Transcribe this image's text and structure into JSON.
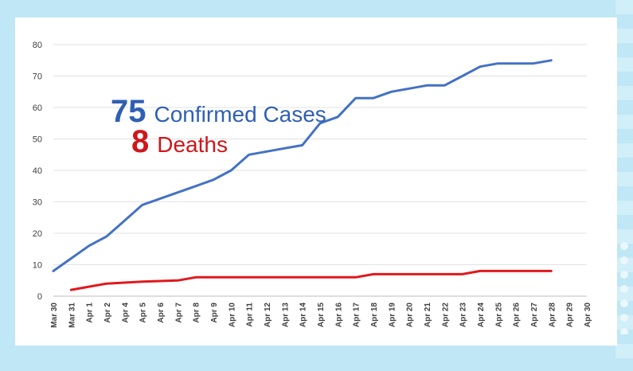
{
  "annotation": {
    "confirmed_number": "75",
    "confirmed_label": "Confirmed Cases",
    "confirmed_color": "#2f5fb3",
    "deaths_number": "8",
    "deaths_label": "Deaths",
    "deaths_color": "#d0161b"
  },
  "chart_data": {
    "type": "line",
    "title": "",
    "xlabel": "",
    "ylabel": "",
    "ylim": [
      0,
      80
    ],
    "yticks": [
      0,
      10,
      20,
      30,
      40,
      50,
      60,
      70,
      80
    ],
    "grid": true,
    "categories": [
      "Mar 30",
      "Mar 31",
      "Apr 1",
      "Apr 2",
      "Apr 4",
      "Apr 5",
      "Apr 6",
      "Apr 7",
      "Apr 8",
      "Apr 9",
      "Apr 10",
      "Apr 11",
      "Apr 12",
      "Apr 13",
      "Apr 14",
      "Apr 15",
      "Apr 16",
      "Apr 17",
      "Apr 18",
      "Apr 19",
      "Apr 20",
      "Apr 21",
      "Apr 22",
      "Apr 23",
      "Apr 24",
      "Apr 25",
      "Apr 26",
      "Apr 27",
      "Apr 28",
      "Apr 29",
      "Apr 30"
    ],
    "series": [
      {
        "color": "#4472c4",
        "values": [
          8,
          12,
          16,
          19,
          24,
          29,
          31,
          33,
          35,
          37,
          40,
          45,
          46,
          47,
          48,
          55,
          57,
          63,
          63,
          65,
          66,
          67,
          67,
          70,
          73,
          74,
          74,
          74,
          75,
          null,
          null
        ]
      },
      {
        "color": "#e0191e",
        "values": [
          null,
          2,
          3,
          4,
          4.3,
          4.6,
          4.8,
          5,
          6,
          6,
          6,
          6,
          6,
          6,
          6,
          6,
          6,
          6,
          7,
          7,
          7,
          7,
          7,
          7,
          8,
          8,
          8,
          8,
          8,
          null,
          null
        ]
      }
    ]
  }
}
